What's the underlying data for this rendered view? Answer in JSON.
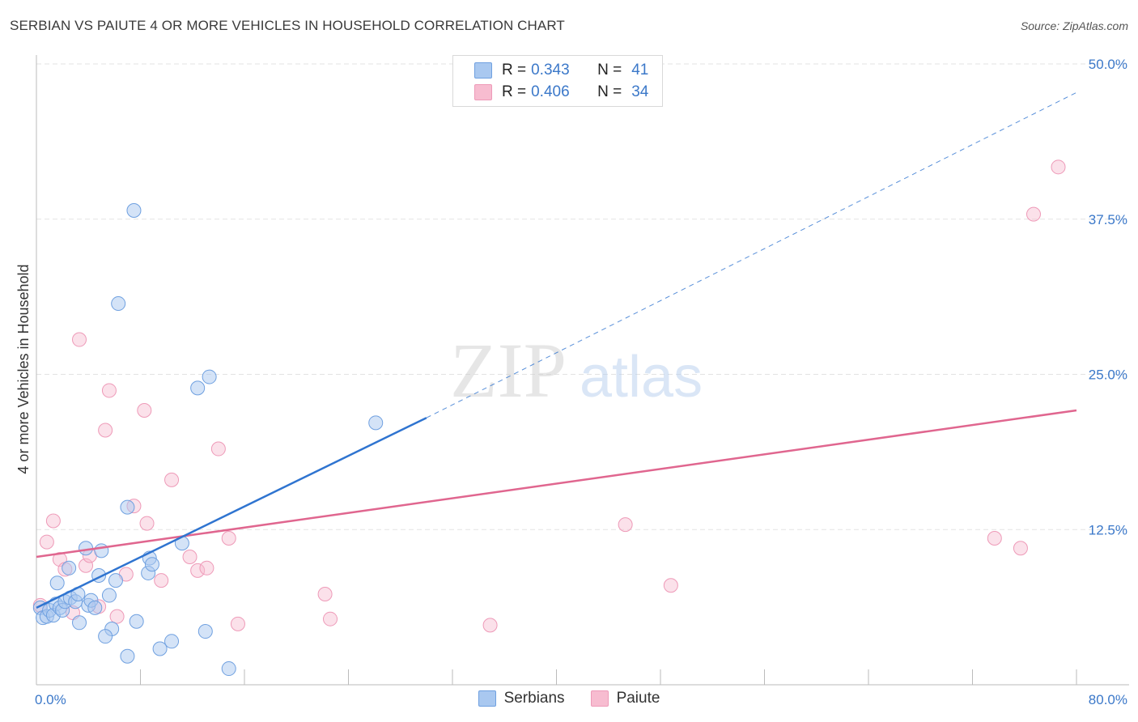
{
  "title": "SERBIAN VS PAIUTE 4 OR MORE VEHICLES IN HOUSEHOLD CORRELATION CHART",
  "source": "Source: ZipAtlas.com",
  "watermark": {
    "zip": "ZIP",
    "atlas": "atlas"
  },
  "legend": {
    "rows": [
      {
        "r_label": "R =",
        "r_value": "0.343",
        "n_label": "N =",
        "n_value": "41"
      },
      {
        "r_label": "R =",
        "r_value": "0.406",
        "n_label": "N =",
        "n_value": "34"
      }
    ]
  },
  "bottom_legend": {
    "serbians": "Serbians",
    "paiute": "Paiute"
  },
  "colors": {
    "serbians_fill": "#a9c8f0",
    "serbians_stroke": "#6fa0e0",
    "serbians_line": "#2f74d0",
    "paiute_fill": "#f7bcd0",
    "paiute_stroke": "#ee9ab8",
    "paiute_line": "#e0668f",
    "tick_text": "#3b78c9",
    "grid": "#e3e3e3"
  },
  "chart_data": {
    "type": "scatter",
    "title": "SERBIAN VS PAIUTE 4 OR MORE VEHICLES IN HOUSEHOLD CORRELATION CHART",
    "xlabel": "",
    "ylabel": "4 or more Vehicles in Household",
    "xlim": [
      0,
      80
    ],
    "ylim": [
      0,
      50
    ],
    "x_tick_labels": [
      "0.0%",
      "80.0%"
    ],
    "y_ticks": [
      12.5,
      25.0,
      37.5,
      50.0
    ],
    "y_tick_labels": [
      "12.5%",
      "25.0%",
      "37.5%",
      "50.0%"
    ],
    "grid": true,
    "legend_position": "top-center",
    "series": [
      {
        "name": "Serbians",
        "r": 0.343,
        "n": 41,
        "trend": {
          "x0": 0,
          "y0": 6.2,
          "x1": 30,
          "y1": 21.5,
          "dashed_to_x": 80,
          "dashed_to_y": 47.7
        },
        "points": [
          [
            0.3,
            6.2
          ],
          [
            0.5,
            5.4
          ],
          [
            0.8,
            5.5
          ],
          [
            1.0,
            6.0
          ],
          [
            1.3,
            5.6
          ],
          [
            1.5,
            6.5
          ],
          [
            1.8,
            6.2
          ],
          [
            2.0,
            6.0
          ],
          [
            1.6,
            8.2
          ],
          [
            2.2,
            6.7
          ],
          [
            2.5,
            9.4
          ],
          [
            2.6,
            7.0
          ],
          [
            3.0,
            6.7
          ],
          [
            3.2,
            7.3
          ],
          [
            3.3,
            5.0
          ],
          [
            3.8,
            11.0
          ],
          [
            4.0,
            6.4
          ],
          [
            4.2,
            6.8
          ],
          [
            4.5,
            6.2
          ],
          [
            4.8,
            8.8
          ],
          [
            5.0,
            10.8
          ],
          [
            5.6,
            7.2
          ],
          [
            5.8,
            4.5
          ],
          [
            6.1,
            8.4
          ],
          [
            5.3,
            3.9
          ],
          [
            7.0,
            2.3
          ],
          [
            7.7,
            5.1
          ],
          [
            7.0,
            14.3
          ],
          [
            8.6,
            9.0
          ],
          [
            8.7,
            10.2
          ],
          [
            8.9,
            9.7
          ],
          [
            9.5,
            2.9
          ],
          [
            10.4,
            3.5
          ],
          [
            11.2,
            11.4
          ],
          [
            12.4,
            23.9
          ],
          [
            13.3,
            24.8
          ],
          [
            13.0,
            4.3
          ],
          [
            14.8,
            1.3
          ],
          [
            6.3,
            30.7
          ],
          [
            7.5,
            38.2
          ],
          [
            26.1,
            21.1
          ]
        ]
      },
      {
        "name": "Paiute",
        "r": 0.406,
        "n": 34,
        "trend": {
          "x0": 0,
          "y0": 10.3,
          "x1": 80,
          "y1": 22.1
        },
        "points": [
          [
            0.3,
            6.4
          ],
          [
            0.8,
            11.5
          ],
          [
            1.3,
            13.2
          ],
          [
            1.8,
            10.1
          ],
          [
            2.2,
            9.3
          ],
          [
            2.8,
            5.8
          ],
          [
            3.3,
            27.8
          ],
          [
            3.8,
            9.6
          ],
          [
            4.1,
            10.4
          ],
          [
            4.8,
            6.3
          ],
          [
            5.3,
            20.5
          ],
          [
            5.6,
            23.7
          ],
          [
            6.2,
            5.5
          ],
          [
            6.9,
            8.9
          ],
          [
            7.5,
            14.4
          ],
          [
            8.3,
            22.1
          ],
          [
            8.5,
            13.0
          ],
          [
            9.6,
            8.4
          ],
          [
            10.4,
            16.5
          ],
          [
            11.8,
            10.3
          ],
          [
            12.4,
            9.2
          ],
          [
            13.1,
            9.4
          ],
          [
            14.0,
            19.0
          ],
          [
            14.8,
            11.8
          ],
          [
            15.5,
            4.9
          ],
          [
            22.2,
            7.3
          ],
          [
            22.6,
            5.3
          ],
          [
            34.9,
            4.8
          ],
          [
            45.3,
            12.9
          ],
          [
            48.8,
            8.0
          ],
          [
            73.7,
            11.8
          ],
          [
            75.7,
            11.0
          ],
          [
            76.7,
            37.9
          ],
          [
            78.6,
            41.7
          ]
        ]
      }
    ]
  }
}
